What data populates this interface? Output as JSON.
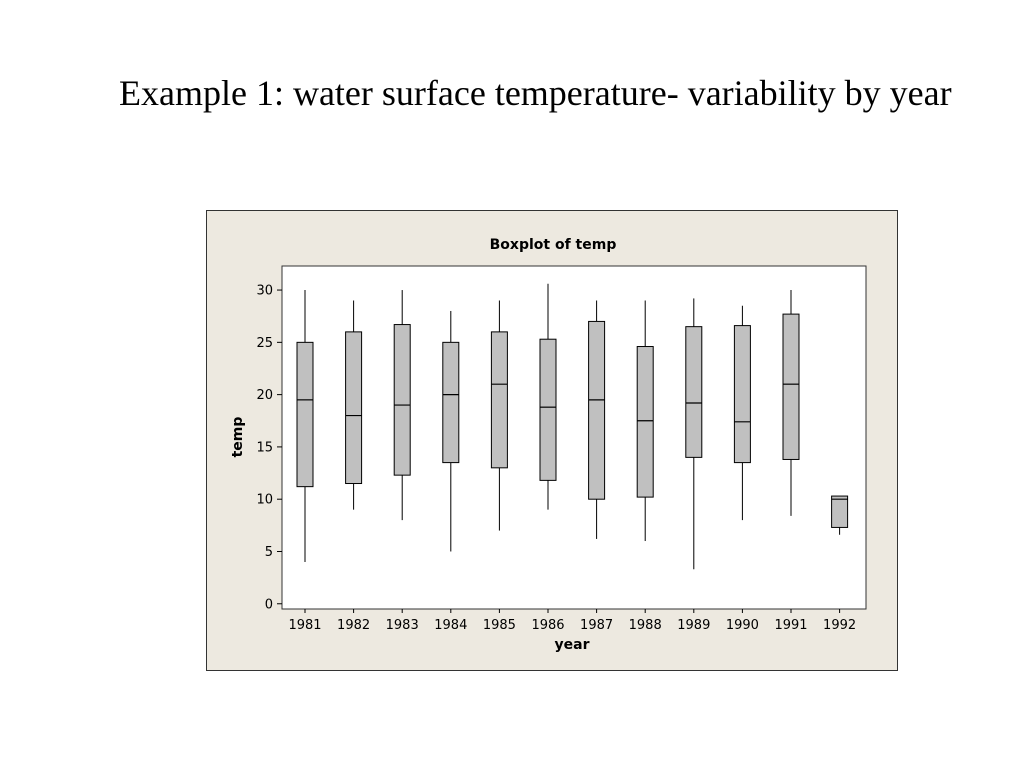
{
  "slide": {
    "title": "Example 1: water surface temperature- variability by year"
  },
  "colors": {
    "frame_background": "#ede9e0",
    "plot_background": "#ffffff",
    "box_fill": "#c0c0c0",
    "stroke": "#000000"
  },
  "chart_data": {
    "type": "boxplot",
    "title": "Boxplot of temp",
    "xlabel": "year",
    "ylabel": "temp",
    "ylim": [
      -0.5,
      32.3
    ],
    "yticks": [
      0,
      5,
      10,
      15,
      20,
      25,
      30
    ],
    "grid": false,
    "categories": [
      "1981",
      "1982",
      "1983",
      "1984",
      "1985",
      "1986",
      "1987",
      "1988",
      "1989",
      "1990",
      "1991",
      "1992"
    ],
    "boxes": [
      {
        "category": "1981",
        "min": 4.0,
        "q1": 11.2,
        "median": 19.5,
        "q3": 25.0,
        "max": 30.0
      },
      {
        "category": "1982",
        "min": 9.0,
        "q1": 11.5,
        "median": 18.0,
        "q3": 26.0,
        "max": 29.0
      },
      {
        "category": "1983",
        "min": 8.0,
        "q1": 12.3,
        "median": 19.0,
        "q3": 26.7,
        "max": 30.0
      },
      {
        "category": "1984",
        "min": 5.0,
        "q1": 13.5,
        "median": 20.0,
        "q3": 25.0,
        "max": 28.0
      },
      {
        "category": "1985",
        "min": 7.0,
        "q1": 13.0,
        "median": 21.0,
        "q3": 26.0,
        "max": 29.0
      },
      {
        "category": "1986",
        "min": 9.0,
        "q1": 11.8,
        "median": 18.8,
        "q3": 25.3,
        "max": 30.6
      },
      {
        "category": "1987",
        "min": 6.2,
        "q1": 10.0,
        "median": 19.5,
        "q3": 27.0,
        "max": 29.0
      },
      {
        "category": "1988",
        "min": 6.0,
        "q1": 10.2,
        "median": 17.5,
        "q3": 24.6,
        "max": 29.0
      },
      {
        "category": "1989",
        "min": 3.3,
        "q1": 14.0,
        "median": 19.2,
        "q3": 26.5,
        "max": 29.2
      },
      {
        "category": "1990",
        "min": 8.0,
        "q1": 13.5,
        "median": 17.4,
        "q3": 26.6,
        "max": 28.5
      },
      {
        "category": "1991",
        "min": 8.4,
        "q1": 13.8,
        "median": 21.0,
        "q3": 27.7,
        "max": 30.0
      },
      {
        "category": "1992",
        "min": 6.6,
        "q1": 7.3,
        "median": 10.0,
        "q3": 10.3,
        "max": 10.3
      }
    ]
  }
}
